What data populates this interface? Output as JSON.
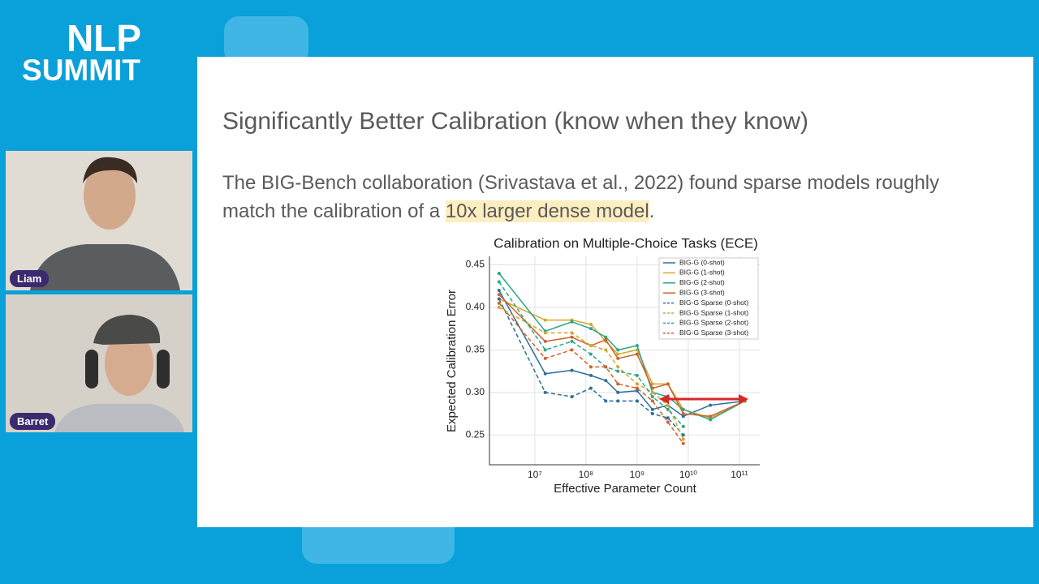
{
  "logo": {
    "line1": "NLP",
    "line2": "SUMMIT"
  },
  "participants": [
    "Liam",
    "Barret"
  ],
  "slide": {
    "title": "Significantly Better Calibration (know when they know)",
    "body": [
      "The BIG-Bench collaboration (Srivastava et al., 2022) found sparse models roughly",
      "match the calibration of a ",
      "10x larger dense model",
      "."
    ]
  },
  "chart_data": {
    "type": "line",
    "title": "Calibration on Multiple-Choice Tasks (ECE)",
    "x_label": "Effective Parameter Count",
    "y_label": "Expected Calibration Error",
    "x_scale": "log",
    "grid": true,
    "legend": "upper right",
    "x": [
      2000000,
      16000000,
      53000000,
      125000000,
      244000000,
      422000000,
      1000000000,
      2000000000,
      4000000000,
      8000000000,
      27000000000,
      128000000000
    ],
    "xlim": [
      1300000,
      250000000000
    ],
    "xticks": [
      {
        "value": 10000000,
        "label": "10⁷"
      },
      {
        "value": 100000000,
        "label": "10⁸"
      },
      {
        "value": 1000000000,
        "label": "10⁹"
      },
      {
        "value": 10000000000,
        "label": "10¹⁰"
      },
      {
        "value": 100000000000,
        "label": "10¹¹"
      }
    ],
    "ylim": [
      0.215,
      0.46
    ],
    "yticks": [
      0.25,
      {
        "value": 0.3,
        "label": "0.30"
      },
      0.35,
      {
        "value": 0.4,
        "label": "0.40"
      },
      0.45
    ],
    "series": [
      {
        "name": "BIG-G (0-shot)",
        "color": "#2c6e9e",
        "linestyle": "solid",
        "values": [
          0.42,
          0.322,
          0.326,
          0.32,
          0.314,
          0.3,
          0.302,
          0.28,
          0.285,
          0.272,
          0.285,
          0.29
        ]
      },
      {
        "name": "BIG-G (1-shot)",
        "color": "#d4a72c",
        "linestyle": "solid",
        "values": [
          0.41,
          0.385,
          0.385,
          0.38,
          0.36,
          0.345,
          0.35,
          0.31,
          0.31,
          0.28,
          0.27,
          0.29
        ]
      },
      {
        "name": "BIG-G (2-shot)",
        "color": "#2aa58a",
        "linestyle": "solid",
        "values": [
          0.44,
          0.372,
          0.383,
          0.375,
          0.365,
          0.35,
          0.355,
          0.3,
          0.295,
          0.28,
          0.268,
          0.29
        ]
      },
      {
        "name": "BIG-G (3-shot)",
        "color": "#d0622b",
        "linestyle": "solid",
        "values": [
          0.415,
          0.36,
          0.365,
          0.355,
          0.362,
          0.34,
          0.345,
          0.305,
          0.31,
          0.275,
          0.272,
          0.29
        ]
      },
      {
        "name": "BIG-G Sparse (0-shot)",
        "color": "#2c6e9e",
        "linestyle": "dashed",
        "values": [
          0.41,
          0.3,
          0.295,
          0.305,
          0.29,
          0.29,
          0.29,
          0.275,
          0.27,
          0.25,
          null,
          null
        ]
      },
      {
        "name": "BIG-G Sparse (1-shot)",
        "color": "#d4a72c",
        "linestyle": "dashed",
        "values": [
          0.4,
          0.37,
          0.37,
          0.355,
          0.35,
          0.33,
          0.31,
          0.3,
          0.285,
          0.245,
          null,
          null
        ]
      },
      {
        "name": "BIG-G Sparse (2-shot)",
        "color": "#2aa58a",
        "linestyle": "dashed",
        "values": [
          0.43,
          0.35,
          0.36,
          0.345,
          0.33,
          0.325,
          0.32,
          0.295,
          0.28,
          0.26,
          null,
          null
        ]
      },
      {
        "name": "BIG-G Sparse (3-shot)",
        "color": "#d0622b",
        "linestyle": "dashed",
        "values": [
          0.405,
          0.34,
          0.35,
          0.33,
          0.33,
          0.31,
          0.305,
          0.29,
          0.265,
          0.24,
          null,
          null
        ]
      }
    ]
  }
}
